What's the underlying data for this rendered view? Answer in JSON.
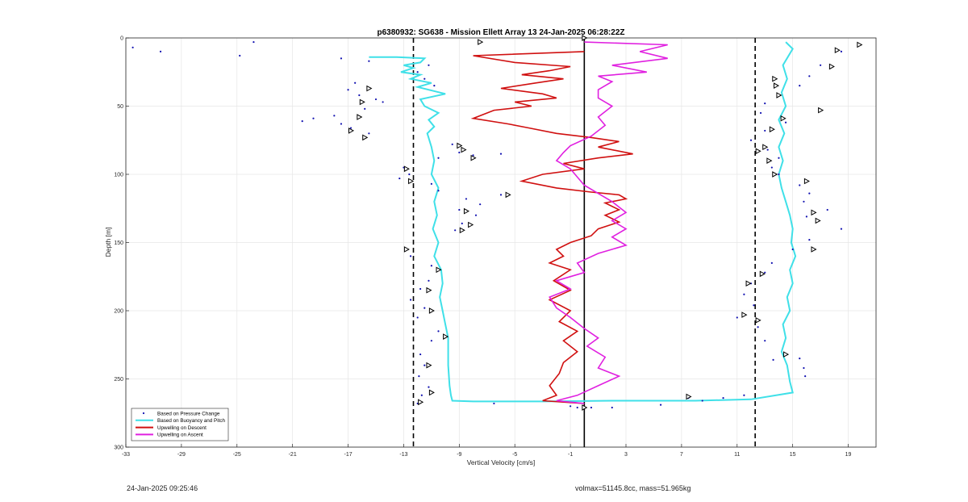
{
  "chart_data": {
    "type": "line",
    "title": "p6380932: SG638 - Mission Ellett Array 13 24-Jan-2025 06:28:22Z",
    "xlabel": "Vertical Velocity [cm/s]",
    "ylabel": "Depth [m]",
    "xlim": [
      -33,
      21
    ],
    "ylim": [
      0,
      300
    ],
    "y_reversed": true,
    "grid": true,
    "legend_position": "bottom-left",
    "x_ticks": [
      -33,
      -29,
      -25,
      -21,
      -17,
      -13,
      -9,
      -5,
      -1,
      3,
      7,
      11,
      15,
      19
    ],
    "y_ticks": [
      0,
      50,
      100,
      150,
      200,
      250,
      300
    ],
    "reference_lines": {
      "dashed_x": [
        -12.3,
        12.3
      ],
      "solid_x": [
        0
      ]
    },
    "series": [
      {
        "name": "Based on Pressure Change",
        "style": "dots",
        "color": "#1010b0",
        "points": [
          [
            -32.5,
            7
          ],
          [
            -30.5,
            10
          ],
          [
            -23.8,
            3
          ],
          [
            -24.8,
            13
          ],
          [
            -17.5,
            15
          ],
          [
            -15.5,
            17
          ],
          [
            -16.5,
            33
          ],
          [
            -17.0,
            38
          ],
          [
            -16.2,
            42
          ],
          [
            -15.0,
            45
          ],
          [
            -14.5,
            47
          ],
          [
            -15.8,
            52
          ],
          [
            -18.0,
            57
          ],
          [
            -19.5,
            59
          ],
          [
            -20.3,
            61
          ],
          [
            -17.5,
            63
          ],
          [
            -16.8,
            66
          ],
          [
            -15.5,
            70
          ],
          [
            -11.2,
            20
          ],
          [
            -12.0,
            25
          ],
          [
            -11.5,
            30
          ],
          [
            -10.8,
            35
          ],
          [
            -9.5,
            78
          ],
          [
            -9.0,
            84
          ],
          [
            -8.0,
            86
          ],
          [
            -6.0,
            85
          ],
          [
            -10.5,
            88
          ],
          [
            -13.0,
            95
          ],
          [
            -12.6,
            100
          ],
          [
            -13.3,
            103
          ],
          [
            -11.0,
            107
          ],
          [
            -10.5,
            112
          ],
          [
            -8.5,
            118
          ],
          [
            -7.5,
            122
          ],
          [
            -9.0,
            126
          ],
          [
            -7.8,
            130
          ],
          [
            -8.8,
            136
          ],
          [
            -9.3,
            141
          ],
          [
            -6.0,
            115
          ],
          [
            -12.8,
            155
          ],
          [
            -12.5,
            160
          ],
          [
            -11.0,
            167
          ],
          [
            -11.2,
            178
          ],
          [
            -11.8,
            184
          ],
          [
            -12.5,
            192
          ],
          [
            -11.5,
            198
          ],
          [
            -12.0,
            205
          ],
          [
            -10.5,
            215
          ],
          [
            -11.0,
            222
          ],
          [
            -11.8,
            232
          ],
          [
            -11.5,
            240
          ],
          [
            -11.9,
            248
          ],
          [
            -11.2,
            256
          ],
          [
            -11.7,
            262
          ],
          [
            -12.0,
            268
          ],
          [
            -6.5,
            268
          ],
          [
            -1.0,
            270
          ],
          [
            -0.5,
            271
          ],
          [
            0.5,
            271
          ],
          [
            2.0,
            271
          ],
          [
            5.5,
            269
          ],
          [
            7.5,
            264
          ],
          [
            8.5,
            266
          ],
          [
            10.0,
            264
          ],
          [
            11.5,
            262
          ],
          [
            18.5,
            10
          ],
          [
            17.0,
            20
          ],
          [
            16.2,
            28
          ],
          [
            15.5,
            35
          ],
          [
            14.0,
            42
          ],
          [
            13.0,
            48
          ],
          [
            12.7,
            55
          ],
          [
            14.5,
            62
          ],
          [
            13.0,
            68
          ],
          [
            12.0,
            75
          ],
          [
            13.2,
            82
          ],
          [
            14.0,
            88
          ],
          [
            13.5,
            95
          ],
          [
            14.0,
            100
          ],
          [
            15.5,
            108
          ],
          [
            16.2,
            114
          ],
          [
            15.8,
            120
          ],
          [
            17.5,
            126
          ],
          [
            16.0,
            131
          ],
          [
            18.5,
            140
          ],
          [
            16.2,
            148
          ],
          [
            15.0,
            155
          ],
          [
            13.5,
            165
          ],
          [
            13.0,
            172
          ],
          [
            12.0,
            180
          ],
          [
            11.5,
            188
          ],
          [
            12.2,
            196
          ],
          [
            11.0,
            205
          ],
          [
            12.5,
            212
          ],
          [
            13.0,
            222
          ],
          [
            13.6,
            236
          ],
          [
            15.5,
            235
          ],
          [
            15.8,
            242
          ],
          [
            15.9,
            248
          ]
        ]
      },
      {
        "name": "Based on Buoyancy and Pitch",
        "style": "line",
        "color": "#3fe0e8",
        "descent": [
          [
            -15.5,
            14
          ],
          [
            -13.5,
            14
          ],
          [
            -11.5,
            15
          ],
          [
            -11.8,
            18
          ],
          [
            -13.0,
            20
          ],
          [
            -12.3,
            22
          ],
          [
            -13.2,
            25
          ],
          [
            -11.8,
            27
          ],
          [
            -12.5,
            30
          ],
          [
            -11.0,
            33
          ],
          [
            -12.0,
            36
          ],
          [
            -10.0,
            41
          ],
          [
            -11.8,
            45
          ],
          [
            -11.5,
            50
          ],
          [
            -10.5,
            55
          ],
          [
            -11.2,
            60
          ],
          [
            -10.8,
            65
          ],
          [
            -11.3,
            70
          ],
          [
            -11.0,
            80
          ],
          [
            -10.8,
            90
          ],
          [
            -11.0,
            100
          ],
          [
            -10.5,
            110
          ],
          [
            -10.8,
            120
          ],
          [
            -10.6,
            130
          ],
          [
            -10.9,
            140
          ],
          [
            -10.5,
            150
          ],
          [
            -10.8,
            160
          ],
          [
            -10.3,
            170
          ],
          [
            -10.2,
            180
          ],
          [
            -10.4,
            190
          ],
          [
            -10.2,
            200
          ],
          [
            -10.0,
            210
          ],
          [
            -9.8,
            220
          ],
          [
            -9.8,
            240
          ],
          [
            -9.7,
            255
          ],
          [
            -9.6,
            262
          ],
          [
            -9.5,
            266
          ],
          [
            -8.0,
            266.5
          ],
          [
            -3.0,
            266.5
          ],
          [
            2.0,
            266
          ],
          [
            8.0,
            266
          ],
          [
            12.0,
            265
          ]
        ],
        "ascent": [
          [
            12.0,
            265
          ],
          [
            15.0,
            260
          ],
          [
            14.8,
            252
          ],
          [
            14.6,
            240
          ],
          [
            14.2,
            230
          ],
          [
            14.5,
            220
          ],
          [
            14.3,
            210
          ],
          [
            14.8,
            200
          ],
          [
            14.6,
            190
          ],
          [
            15.0,
            180
          ],
          [
            14.8,
            170
          ],
          [
            15.2,
            160
          ],
          [
            14.9,
            150
          ],
          [
            15.0,
            140
          ],
          [
            14.8,
            130
          ],
          [
            14.5,
            120
          ],
          [
            14.2,
            110
          ],
          [
            14.0,
            100
          ],
          [
            14.3,
            90
          ],
          [
            14.0,
            80
          ],
          [
            14.4,
            70
          ],
          [
            14.0,
            60
          ],
          [
            14.5,
            50
          ],
          [
            14.2,
            40
          ],
          [
            14.6,
            30
          ],
          [
            14.3,
            20
          ],
          [
            15.0,
            8
          ],
          [
            14.5,
            3
          ]
        ]
      },
      {
        "name": "Upwelling on Descent",
        "style": "line",
        "color": "#d01010",
        "points": [
          [
            0.0,
            10
          ],
          [
            -8.0,
            13
          ],
          [
            -5.0,
            18
          ],
          [
            -1.0,
            21
          ],
          [
            -2.5,
            24
          ],
          [
            -4.5,
            27
          ],
          [
            -1.5,
            30
          ],
          [
            -3.5,
            33
          ],
          [
            -6.0,
            37
          ],
          [
            -3.0,
            41
          ],
          [
            -2.0,
            44
          ],
          [
            -5.0,
            47
          ],
          [
            -3.8,
            50
          ],
          [
            -6.5,
            53
          ],
          [
            -8.0,
            59
          ],
          [
            -5.5,
            63
          ],
          [
            -4.0,
            66
          ],
          [
            -2.0,
            70
          ],
          [
            0.5,
            73
          ],
          [
            2.5,
            76
          ],
          [
            1.0,
            80
          ],
          [
            3.5,
            85
          ],
          [
            1.0,
            88
          ],
          [
            -1.5,
            92
          ],
          [
            0.0,
            96
          ],
          [
            -3.0,
            100
          ],
          [
            -4.5,
            105
          ],
          [
            -2.0,
            110
          ],
          [
            0.5,
            113
          ],
          [
            2.5,
            115
          ],
          [
            3.0,
            118
          ],
          [
            1.5,
            121
          ],
          [
            2.5,
            126
          ],
          [
            1.5,
            130
          ],
          [
            2.5,
            135
          ],
          [
            1.0,
            140
          ],
          [
            0.5,
            145
          ],
          [
            -1.0,
            150
          ],
          [
            -2.0,
            155
          ],
          [
            -1.5,
            160
          ],
          [
            -2.5,
            165
          ],
          [
            -1.0,
            170
          ],
          [
            -2.2,
            178
          ],
          [
            -1.0,
            185
          ],
          [
            -2.5,
            192
          ],
          [
            -1.0,
            200
          ],
          [
            -1.8,
            208
          ],
          [
            -0.5,
            215
          ],
          [
            -1.5,
            222
          ],
          [
            -0.5,
            230
          ],
          [
            -1.5,
            238
          ],
          [
            -1.8,
            246
          ],
          [
            -2.5,
            255
          ],
          [
            -2.0,
            262
          ],
          [
            -3.0,
            266
          ],
          [
            0.0,
            268
          ]
        ]
      },
      {
        "name": "Upwelling on Ascent",
        "style": "line",
        "color": "#e020e0",
        "points": [
          [
            0.0,
            268
          ],
          [
            -2.0,
            266
          ],
          [
            -0.5,
            262
          ],
          [
            1.0,
            255
          ],
          [
            2.5,
            248
          ],
          [
            1.0,
            242
          ],
          [
            1.5,
            234
          ],
          [
            0.2,
            226
          ],
          [
            1.0,
            220
          ],
          [
            0.0,
            213
          ],
          [
            -1.0,
            205
          ],
          [
            -2.0,
            198
          ],
          [
            -2.5,
            190
          ],
          [
            -1.0,
            184
          ],
          [
            -2.0,
            178
          ],
          [
            0.0,
            172
          ],
          [
            -0.5,
            165
          ],
          [
            1.0,
            158
          ],
          [
            3.0,
            152
          ],
          [
            2.0,
            146
          ],
          [
            3.0,
            140
          ],
          [
            2.0,
            134
          ],
          [
            3.0,
            128
          ],
          [
            2.0,
            120
          ],
          [
            1.0,
            114
          ],
          [
            0.0,
            108
          ],
          [
            -0.5,
            102
          ],
          [
            -1.0,
            96
          ],
          [
            -2.0,
            90
          ],
          [
            -1.5,
            84
          ],
          [
            -1.0,
            79
          ],
          [
            0.5,
            72
          ],
          [
            1.5,
            64
          ],
          [
            1.0,
            58
          ],
          [
            2.0,
            50
          ],
          [
            1.0,
            44
          ],
          [
            1.0,
            38
          ],
          [
            2.0,
            32
          ],
          [
            1.0,
            28
          ],
          [
            4.5,
            25
          ],
          [
            2.0,
            20
          ],
          [
            6.0,
            15
          ],
          [
            4.0,
            10
          ],
          [
            6.0,
            5
          ],
          [
            0.0,
            3
          ]
        ]
      }
    ],
    "markers": {
      "triangles": [
        [
          -7.5,
          3
        ],
        [
          -15.5,
          37
        ],
        [
          -16.0,
          47
        ],
        [
          -16.2,
          58
        ],
        [
          -16.8,
          68
        ],
        [
          -15.8,
          73
        ],
        [
          -9.0,
          79
        ],
        [
          -8.7,
          82
        ],
        [
          -8.0,
          88
        ],
        [
          -12.8,
          96
        ],
        [
          -12.5,
          105
        ],
        [
          -5.5,
          115
        ],
        [
          -8.5,
          127
        ],
        [
          -8.2,
          137
        ],
        [
          -8.8,
          141
        ],
        [
          -12.8,
          155
        ],
        [
          -10.5,
          170
        ],
        [
          -11.2,
          185
        ],
        [
          -11.0,
          200
        ],
        [
          -10.0,
          219
        ],
        [
          -11.2,
          240
        ],
        [
          -11.0,
          260
        ],
        [
          -11.8,
          267
        ],
        [
          0.0,
          0
        ],
        [
          0.0,
          271
        ],
        [
          7.5,
          263
        ],
        [
          11.8,
          180
        ],
        [
          11.5,
          203
        ],
        [
          12.5,
          207
        ],
        [
          12.8,
          173
        ],
        [
          12.5,
          83
        ],
        [
          13.0,
          80
        ],
        [
          13.3,
          90
        ],
        [
          13.7,
          100
        ],
        [
          13.8,
          35
        ],
        [
          14.0,
          42
        ],
        [
          14.3,
          59
        ],
        [
          13.5,
          67
        ],
        [
          16.0,
          105
        ],
        [
          16.5,
          128
        ],
        [
          16.8,
          134
        ],
        [
          16.5,
          155
        ],
        [
          14.5,
          232
        ],
        [
          19.8,
          5
        ],
        [
          18.2,
          9
        ],
        [
          17.8,
          21
        ],
        [
          17.0,
          53
        ],
        [
          13.7,
          30
        ]
      ]
    }
  },
  "footer": {
    "timestamp": "24-Jan-2025 09:25:46",
    "stats": "volmax=51145.8cc, mass=51.965kg"
  }
}
